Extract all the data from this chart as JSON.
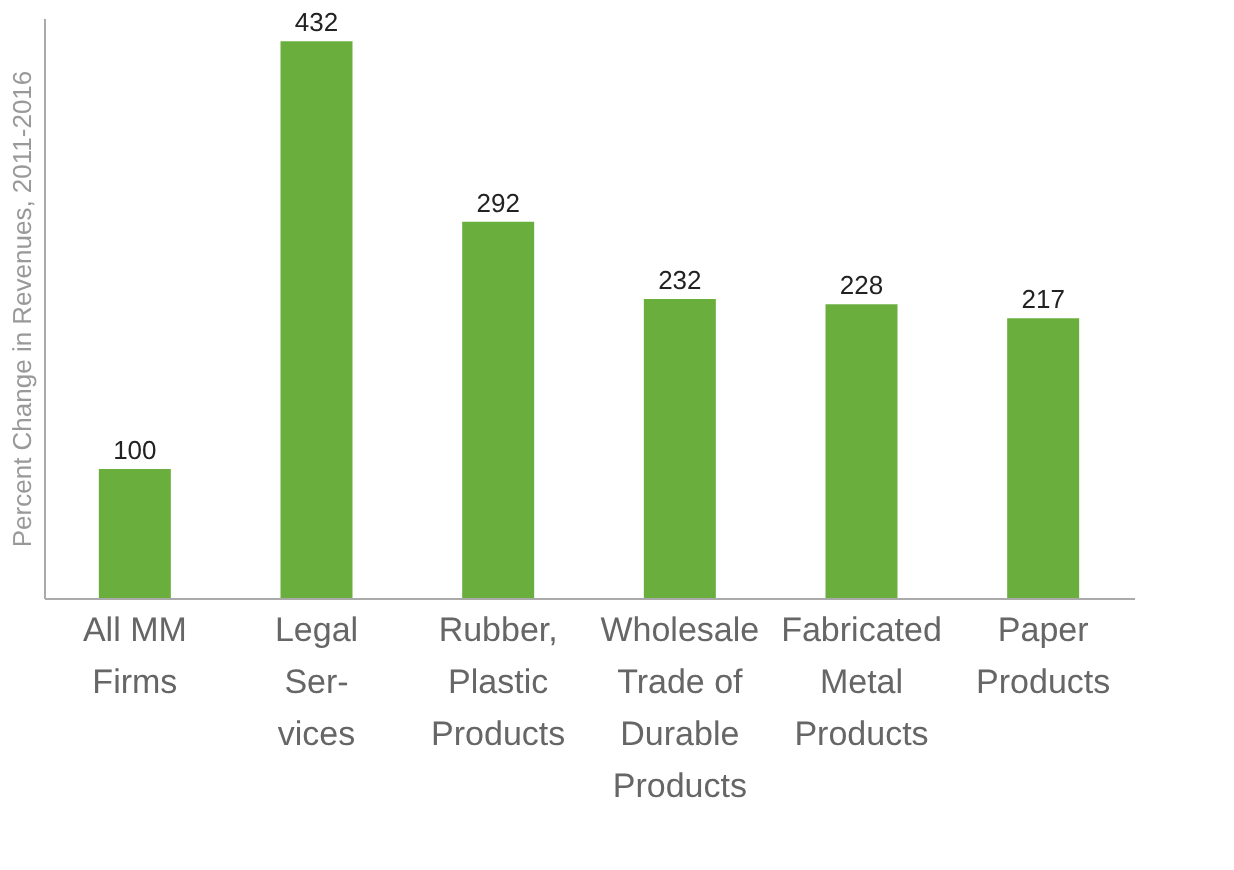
{
  "chart_data": {
    "type": "bar",
    "ylabel": "Percent Change in Revenues, 2011-2016",
    "categories": [
      "All MM\nFirms",
      "Legal\nSer-\nvices",
      "Rubber,\nPlastic\nProducts",
      "Wholesale\nTrade of\nDurable\nProducts",
      "Fabricated\nMetal\nProducts",
      "Paper\nProducts"
    ],
    "values": [
      100,
      432,
      292,
      232,
      228,
      217
    ],
    "color": "#6aaf3d",
    "data_labels": true,
    "grid": false,
    "tick_labels": "x"
  }
}
